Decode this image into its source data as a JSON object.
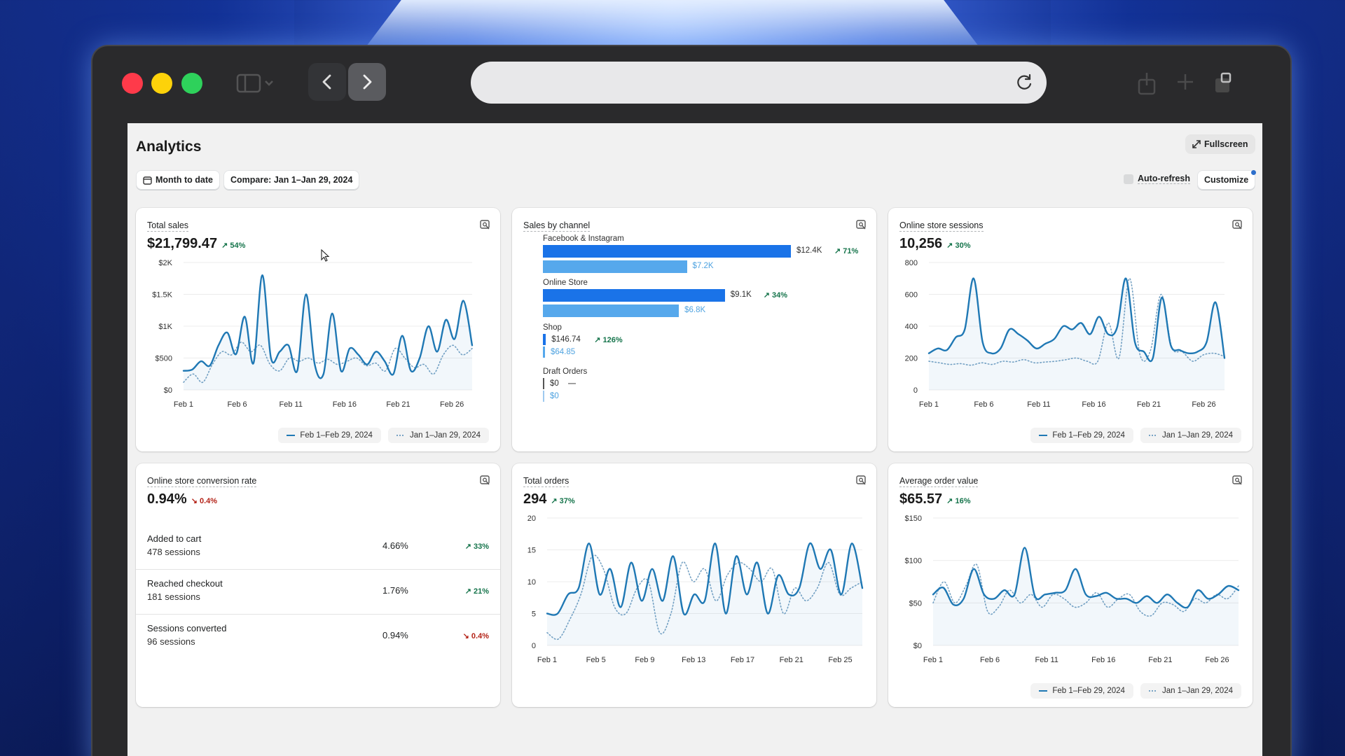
{
  "browser": {
    "url": ""
  },
  "page": {
    "title": "Analytics",
    "fullscreen_label": "Fullscreen",
    "date_range_label": "Month to date",
    "compare_label": "Compare: Jan 1–Jan 29, 2024",
    "auto_refresh_label": "Auto-refresh",
    "customize_label": "Customize"
  },
  "legend": {
    "current": "Feb 1–Feb 29, 2024",
    "previous": "Jan 1–Jan 29, 2024"
  },
  "colors": {
    "current": "#1f78b4",
    "previous": "#78a3c4",
    "bar_dark": "#1a73e8",
    "bar_light": "#56a8ec",
    "positive": "#15744b",
    "negative": "#b42318"
  },
  "cards": {
    "total_sales": {
      "title": "Total sales",
      "value": "$21,799.47",
      "delta": "54%"
    },
    "sales_by_channel": {
      "title": "Sales by channel"
    },
    "sessions": {
      "title": "Online store sessions",
      "value": "10,256",
      "delta": "30%"
    },
    "conversion": {
      "title": "Online store conversion rate",
      "value": "0.94%",
      "delta": "0.4%",
      "rows": [
        {
          "label": "Added to cart",
          "sub": "478 sessions",
          "pct": "4.66%",
          "delta": "33%",
          "dir": "up"
        },
        {
          "label": "Reached checkout",
          "sub": "181 sessions",
          "pct": "1.76%",
          "delta": "21%",
          "dir": "up"
        },
        {
          "label": "Sessions converted",
          "sub": "96 sessions",
          "pct": "0.94%",
          "delta": "0.4%",
          "dir": "down"
        }
      ]
    },
    "orders": {
      "title": "Total orders",
      "value": "294",
      "delta": "37%"
    },
    "aov": {
      "title": "Average order value",
      "value": "$65.57",
      "delta": "16%"
    }
  },
  "chart_data": [
    {
      "id": "total_sales",
      "type": "line",
      "x_ticks": [
        "Feb 1",
        "Feb 6",
        "Feb 11",
        "Feb 16",
        "Feb 21",
        "Feb 26"
      ],
      "y_ticks": [
        "$0",
        "$500",
        "$1K",
        "$1.5K",
        "$2K"
      ],
      "ylim": [
        0,
        2000
      ],
      "series": [
        {
          "name": "Feb 1–Feb 29, 2024",
          "style": "solid",
          "values": [
            300,
            320,
            450,
            380,
            700,
            900,
            560,
            1150,
            420,
            1800,
            500,
            600,
            700,
            300,
            1500,
            400,
            250,
            1200,
            300,
            650,
            550,
            400,
            600,
            450,
            250,
            850,
            300,
            500,
            1000,
            600,
            1100,
            800,
            1400,
            700
          ]
        },
        {
          "name": "Jan 1–Jan 29, 2024",
          "style": "dotted",
          "values": [
            120,
            250,
            120,
            400,
            600,
            550,
            750,
            600,
            700,
            400,
            300,
            500,
            450,
            500,
            420,
            480,
            400,
            450,
            500,
            380,
            420,
            300,
            650,
            500,
            350,
            400,
            250,
            550,
            700,
            550,
            650
          ]
        }
      ]
    },
    {
      "id": "sales_by_channel",
      "type": "bar",
      "categories": [
        "Facebook & Instagram",
        "Online Store",
        "Shop",
        "Draft Orders"
      ],
      "series": [
        {
          "name": "Feb 1–Feb 29, 2024",
          "values": [
            12400,
            9100,
            146.74,
            0
          ],
          "labels": [
            "$12.4K",
            "$9.1K",
            "$146.74",
            "$0"
          ],
          "deltas": [
            "71%",
            "34%",
            "126%",
            "—"
          ]
        },
        {
          "name": "Jan 1–Jan 29, 2024",
          "values": [
            7200,
            6800,
            64.85,
            0
          ],
          "labels": [
            "$7.2K",
            "$6.8K",
            "$64.85",
            "$0"
          ]
        }
      ]
    },
    {
      "id": "sessions",
      "type": "line",
      "x_ticks": [
        "Feb 1",
        "Feb 6",
        "Feb 11",
        "Feb 16",
        "Feb 21",
        "Feb 26"
      ],
      "y_ticks": [
        "0",
        "200",
        "400",
        "600",
        "800"
      ],
      "ylim": [
        0,
        800
      ],
      "series": [
        {
          "name": "Feb 1–Feb 29, 2024",
          "style": "solid",
          "values": [
            230,
            260,
            250,
            330,
            380,
            700,
            300,
            230,
            260,
            380,
            350,
            310,
            260,
            290,
            320,
            400,
            380,
            420,
            350,
            460,
            350,
            390,
            700,
            300,
            240,
            200,
            580,
            280,
            250,
            230,
            240,
            300,
            550,
            200
          ]
        },
        {
          "name": "Jan 1–Jan 29, 2024",
          "style": "dotted",
          "values": [
            180,
            170,
            160,
            165,
            155,
            170,
            160,
            180,
            175,
            190,
            170,
            175,
            180,
            190,
            200,
            180,
            180,
            420,
            200,
            700,
            220,
            250,
            600,
            270,
            240,
            180,
            220,
            230,
            210
          ]
        }
      ]
    },
    {
      "id": "orders",
      "type": "line",
      "x_ticks": [
        "Feb 1",
        "Feb 5",
        "Feb 9",
        "Feb 13",
        "Feb 17",
        "Feb 21",
        "Feb 25"
      ],
      "y_ticks": [
        "0",
        "5",
        "10",
        "15",
        "20"
      ],
      "ylim": [
        0,
        20
      ],
      "series": [
        {
          "name": "Feb 1–Feb 29, 2024",
          "style": "solid",
          "values": [
            5,
            5,
            8,
            9,
            16,
            8,
            12,
            6,
            13,
            7,
            12,
            7,
            14,
            5,
            8,
            7,
            16,
            5,
            14,
            8,
            13,
            5,
            11,
            8,
            9,
            16,
            12,
            15,
            8,
            16,
            9
          ]
        },
        {
          "name": "Jan 1–Jan 29, 2024",
          "style": "dotted",
          "values": [
            2,
            1,
            4,
            8,
            14,
            12,
            6,
            5,
            9,
            10,
            2,
            5,
            13,
            10,
            12,
            7,
            11,
            13,
            12,
            10,
            12,
            5,
            9,
            7,
            9,
            13,
            8,
            9,
            10
          ]
        }
      ]
    },
    {
      "id": "aov",
      "type": "line",
      "x_ticks": [
        "Feb 1",
        "Feb 6",
        "Feb 11",
        "Feb 16",
        "Feb 21",
        "Feb 26"
      ],
      "y_ticks": [
        "$0",
        "$50",
        "$100",
        "$150"
      ],
      "ylim": [
        0,
        150
      ],
      "series": [
        {
          "name": "Feb 1–Feb 29, 2024",
          "style": "solid",
          "values": [
            60,
            68,
            48,
            55,
            90,
            60,
            55,
            65,
            60,
            115,
            58,
            60,
            62,
            65,
            90,
            60,
            58,
            62,
            55,
            55,
            50,
            58,
            50,
            60,
            50,
            45,
            65,
            55,
            60,
            70,
            65
          ]
        },
        {
          "name": "Jan 1–Jan 29, 2024",
          "style": "dotted",
          "values": [
            50,
            75,
            50,
            70,
            95,
            40,
            45,
            65,
            50,
            60,
            45,
            60,
            55,
            45,
            50,
            62,
            45,
            55,
            60,
            40,
            35,
            50,
            48,
            40,
            55,
            50,
            60,
            55,
            70
          ]
        }
      ]
    }
  ]
}
